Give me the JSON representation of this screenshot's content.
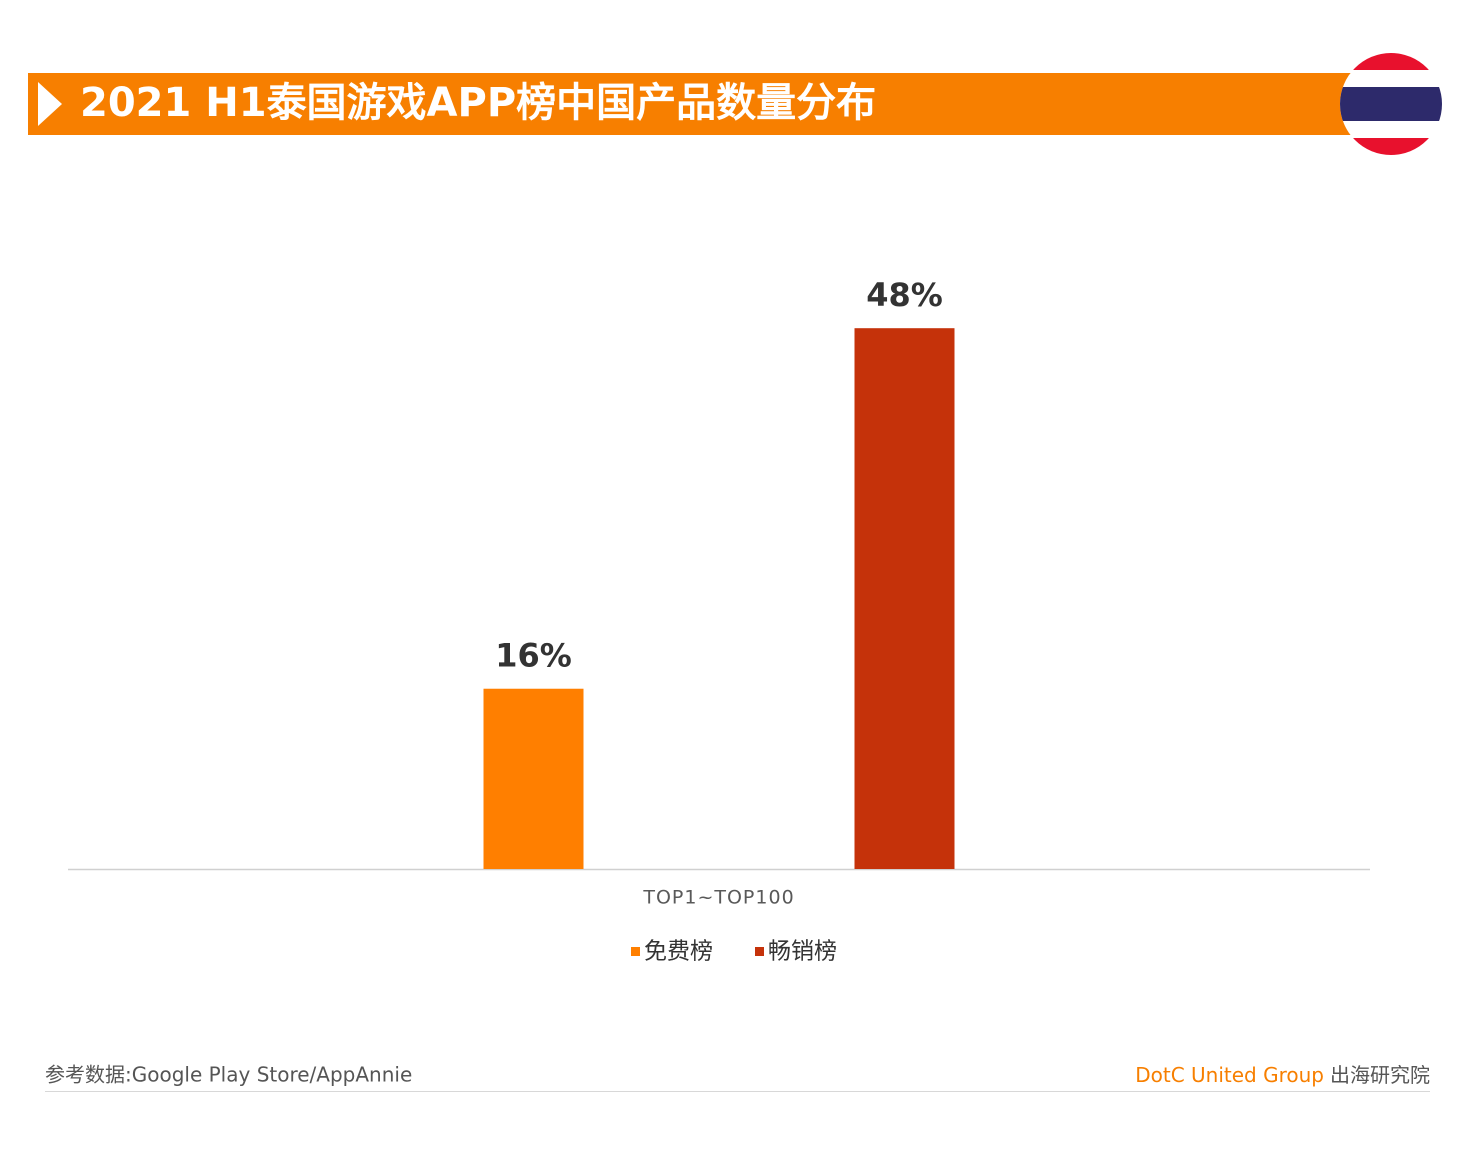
{
  "chart_data": {
    "type": "bar",
    "title": "2021 H1泰国游戏APP榜中国产品数量分布",
    "categories": [
      "TOP1~TOP100"
    ],
    "series": [
      {
        "name": "免费榜",
        "color": "#ff7f00",
        "values": [
          16
        ],
        "value_labels": [
          "16%"
        ]
      },
      {
        "name": "畅销榜",
        "color": "#c5320a",
        "values": [
          48
        ],
        "value_labels": [
          "48%"
        ]
      }
    ],
    "ylim": [
      0,
      60
    ],
    "grid": false,
    "legend": "bottom"
  },
  "footer": {
    "source": "参考数据:Google Play Store/AppAnnie",
    "brand": "DotC United Group",
    "brand_suffix": "出海研究院"
  }
}
